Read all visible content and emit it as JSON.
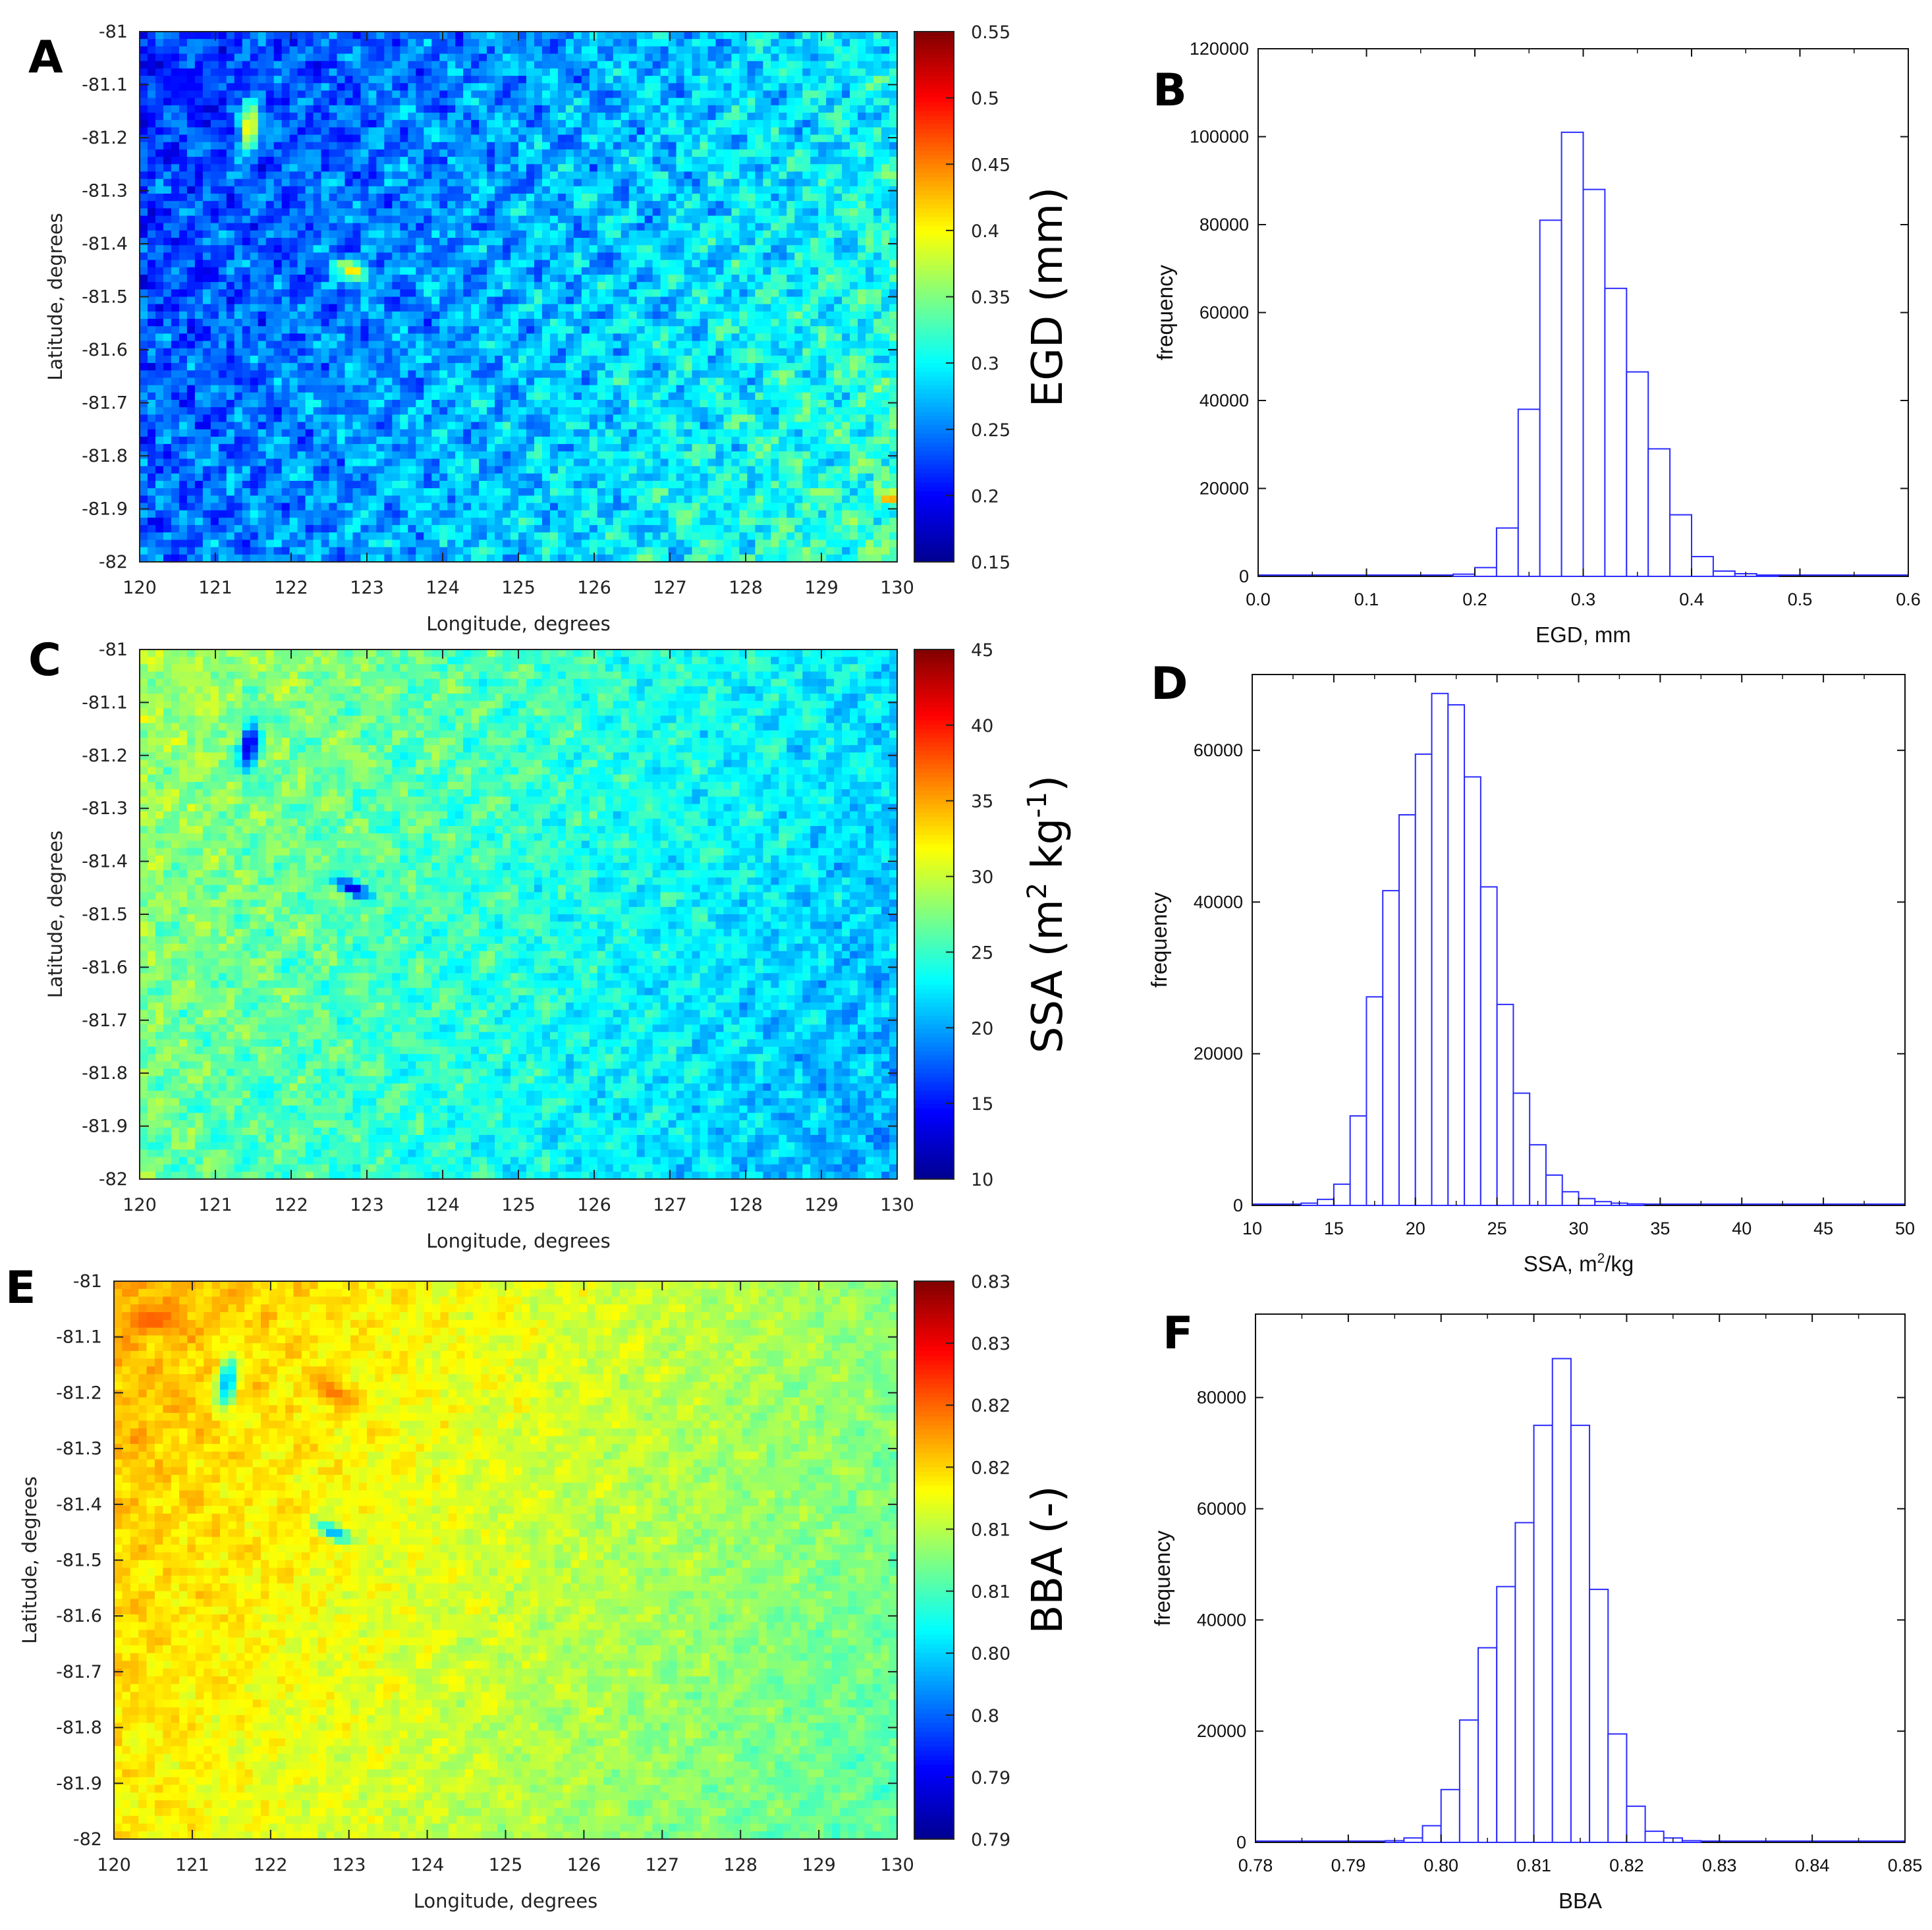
{
  "colormap": [
    "#00008f",
    "#0000ff",
    "#0080ff",
    "#00ffff",
    "#80ff80",
    "#ffff00",
    "#ff8000",
    "#ff0000",
    "#800000"
  ],
  "hist_color": "#2b2bff",
  "chart_data": [
    {
      "id": "A",
      "panel_label": "A",
      "type": "heatmap",
      "xlabel": "Longitude, degrees",
      "ylabel": "Latitude, degrees",
      "xlim": [
        120,
        130
      ],
      "ylim": [
        -82,
        -81
      ],
      "xticks": [
        "120",
        "121",
        "122",
        "123",
        "124",
        "125",
        "126",
        "127",
        "128",
        "129",
        "130"
      ],
      "yticks": [
        "-81",
        "-81.1",
        "-81.2",
        "-81.3",
        "-81.4",
        "-81.5",
        "-81.6",
        "-81.7",
        "-81.8",
        "-81.9",
        "-82"
      ],
      "colorbar": {
        "label": "EGD (mm)",
        "label_main": "EGD (mm)",
        "ticks": [
          "0.55",
          "0.5",
          "0.45",
          "0.4",
          "0.35",
          "0.3",
          "0.25",
          "0.2",
          "0.15"
        ],
        "range": [
          0.15,
          0.55
        ]
      },
      "field": {
        "base": 0.27,
        "gradient": 0.11,
        "noise": 0.045,
        "features": [
          {
            "lon": 121.45,
            "lat": -81.18,
            "value": 0.42,
            "radius": 0.12,
            "stretch": 4.0,
            "angle": 85
          },
          {
            "lon": 122.8,
            "lat": -81.45,
            "value": 0.42,
            "radius": 0.12,
            "stretch": 2.2,
            "angle": -40
          },
          {
            "lon": 122.7,
            "lat": -81.2,
            "value": 0.2,
            "radius": 0.15,
            "stretch": 2.0,
            "angle": -40
          },
          {
            "lon": 120.6,
            "lat": -81.1,
            "value": 0.2,
            "radius": 0.25,
            "stretch": 1.5,
            "angle": 0
          },
          {
            "lon": 129.9,
            "lat": -81.88,
            "value": 0.45,
            "radius": 0.12,
            "stretch": 1.0,
            "angle": 0
          }
        ]
      }
    },
    {
      "id": "B",
      "panel_label": "B",
      "type": "bar",
      "xlabel": "EGD, mm",
      "xlabel_main": "EGD, mm",
      "xlabel_sup": "",
      "xlabel_tail": "",
      "ylabel": "frequency",
      "xlim": [
        0.0,
        0.6
      ],
      "ylim": [
        0,
        120000
      ],
      "xticks": [
        0.0,
        0.1,
        0.2,
        0.3,
        0.4,
        0.5,
        0.6
      ],
      "xtick_labels": [
        "0.0",
        "0.1",
        "0.2",
        "0.3",
        "0.4",
        "0.5",
        "0.6"
      ],
      "yticks": [
        0,
        20000,
        40000,
        60000,
        80000,
        100000,
        120000
      ],
      "ytick_labels": [
        "0",
        "20000",
        "40000",
        "60000",
        "80000",
        "100000",
        "120000"
      ],
      "bin_width": 0.02,
      "bin_starts": [
        0.18,
        0.2,
        0.22,
        0.24,
        0.26,
        0.28,
        0.3,
        0.32,
        0.34,
        0.36,
        0.38,
        0.4,
        0.42,
        0.44,
        0.46
      ],
      "values": [
        500,
        2000,
        11000,
        38000,
        81000,
        101000,
        88000,
        65500,
        46500,
        29000,
        14000,
        4500,
        1200,
        600,
        300
      ]
    },
    {
      "id": "C",
      "panel_label": "C",
      "type": "heatmap",
      "xlabel": "Longitude, degrees",
      "ylabel": "Latitude, degrees",
      "xlim": [
        120,
        130
      ],
      "ylim": [
        -82,
        -81
      ],
      "xticks": [
        "120",
        "121",
        "122",
        "123",
        "124",
        "125",
        "126",
        "127",
        "128",
        "129",
        "130"
      ],
      "yticks": [
        "-81",
        "-81.1",
        "-81.2",
        "-81.3",
        "-81.4",
        "-81.5",
        "-81.6",
        "-81.7",
        "-81.8",
        "-81.9",
        "-82"
      ],
      "colorbar": {
        "label": "SSA (m2 kg-1)",
        "label_main": "SSA (m",
        "label_sup1": "2",
        "label_mid": " kg",
        "label_sup2": "-1",
        "label_tail": ")",
        "ticks": [
          "45",
          "40",
          "35",
          "30",
          "25",
          "20",
          "15",
          "10"
        ],
        "range": [
          10,
          45
        ]
      },
      "field": {
        "base": 24.5,
        "gradient": -9.0,
        "noise": 2.8,
        "features": [
          {
            "lon": 121.45,
            "lat": -81.18,
            "value": 12.0,
            "radius": 0.12,
            "stretch": 4.0,
            "angle": 85
          },
          {
            "lon": 122.8,
            "lat": -81.45,
            "value": 12.0,
            "radius": 0.12,
            "stretch": 2.2,
            "angle": -40
          },
          {
            "lon": 122.8,
            "lat": -81.2,
            "value": 29.0,
            "radius": 0.15,
            "stretch": 2.0,
            "angle": -40
          },
          {
            "lon": 120.6,
            "lat": -81.05,
            "value": 29.0,
            "radius": 0.2,
            "stretch": 1.5,
            "angle": 0
          },
          {
            "lon": 120.7,
            "lat": -81.3,
            "value": 32.0,
            "radius": 0.06,
            "stretch": 1.0,
            "angle": 0
          }
        ]
      }
    },
    {
      "id": "D",
      "panel_label": "D",
      "type": "bar",
      "xlabel": "SSA, m2/kg",
      "xlabel_main": "SSA, m",
      "xlabel_sup": "2",
      "xlabel_tail": "/kg",
      "ylabel": "frequency",
      "xlim": [
        10,
        50
      ],
      "ylim": [
        0,
        70000
      ],
      "xticks": [
        10,
        15,
        20,
        25,
        30,
        35,
        40,
        45,
        50
      ],
      "xtick_labels": [
        "10",
        "15",
        "20",
        "25",
        "30",
        "35",
        "40",
        "45",
        "50"
      ],
      "yticks": [
        0,
        20000,
        40000,
        60000
      ],
      "ytick_labels": [
        "0",
        "20000",
        "40000",
        "60000"
      ],
      "bin_width": 1,
      "bin_starts": [
        13,
        14,
        15,
        16,
        17,
        18,
        19,
        20,
        21,
        22,
        23,
        24,
        25,
        26,
        27,
        28,
        29,
        30,
        31,
        32,
        33
      ],
      "values": [
        300,
        800,
        2800,
        11800,
        27500,
        41500,
        51500,
        59500,
        67500,
        66000,
        56500,
        42000,
        26500,
        14800,
        8000,
        4000,
        1800,
        900,
        500,
        300,
        200
      ]
    },
    {
      "id": "E",
      "panel_label": "E",
      "type": "heatmap",
      "xlabel": "Longitude, degrees",
      "ylabel": "Latitude, degrees",
      "xlim": [
        120,
        130
      ],
      "ylim": [
        -82,
        -81
      ],
      "xticks": [
        "120",
        "121",
        "122",
        "123",
        "124",
        "125",
        "126",
        "127",
        "128",
        "129",
        "130"
      ],
      "yticks": [
        "-81",
        "-81.1",
        "-81.2",
        "-81.3",
        "-81.4",
        "-81.5",
        "-81.6",
        "-81.7",
        "-81.8",
        "-81.9",
        "-82"
      ],
      "colorbar": {
        "label": "BBA (-)",
        "label_main": "BBA (-)",
        "ticks": [
          "0.83",
          "0.83",
          "0.82",
          "0.82",
          "0.81",
          "0.81",
          "0.80",
          "0.8",
          "0.79",
          "0.79"
        ],
        "range": [
          0.7875,
          0.8325
        ]
      },
      "field": {
        "base": 0.8135,
        "gradient": -0.011,
        "noise": 0.0022,
        "features": [
          {
            "lon": 121.45,
            "lat": -81.18,
            "value": 0.8,
            "radius": 0.12,
            "stretch": 4.0,
            "angle": 85
          },
          {
            "lon": 122.8,
            "lat": -81.45,
            "value": 0.8,
            "radius": 0.12,
            "stretch": 2.2,
            "angle": -40
          },
          {
            "lon": 122.8,
            "lat": -81.2,
            "value": 0.822,
            "radius": 0.16,
            "stretch": 2.0,
            "angle": -40
          },
          {
            "lon": 120.5,
            "lat": -81.07,
            "value": 0.823,
            "radius": 0.22,
            "stretch": 1.5,
            "angle": 0
          },
          {
            "lon": 120.3,
            "lat": -81.28,
            "value": 0.822,
            "radius": 0.08,
            "stretch": 1.0,
            "angle": 0
          }
        ]
      }
    },
    {
      "id": "F",
      "panel_label": "F",
      "type": "bar",
      "xlabel": "BBA",
      "xlabel_main": "BBA",
      "xlabel_sup": "",
      "xlabel_tail": "",
      "ylabel": "frequency",
      "xlim": [
        0.78,
        0.85
      ],
      "ylim": [
        0,
        95000
      ],
      "xticks": [
        0.78,
        0.79,
        0.8,
        0.81,
        0.82,
        0.83,
        0.84,
        0.85
      ],
      "xtick_labels": [
        "0.78",
        "0.79",
        "0.80",
        "0.81",
        "0.82",
        "0.83",
        "0.84",
        "0.85"
      ],
      "yticks": [
        0,
        20000,
        40000,
        60000,
        80000
      ],
      "ytick_labels": [
        "0",
        "20000",
        "40000",
        "60000",
        "80000"
      ],
      "bin_width": 0.002,
      "bin_starts": [
        0.794,
        0.796,
        0.798,
        0.8,
        0.802,
        0.804,
        0.806,
        0.808,
        0.81,
        0.812,
        0.814,
        0.816,
        0.818,
        0.82,
        0.822,
        0.824,
        0.826
      ],
      "values": [
        300,
        800,
        3000,
        9500,
        22000,
        35000,
        46000,
        57500,
        75000,
        87000,
        75000,
        45500,
        19500,
        6500,
        2000,
        800,
        300
      ]
    }
  ]
}
